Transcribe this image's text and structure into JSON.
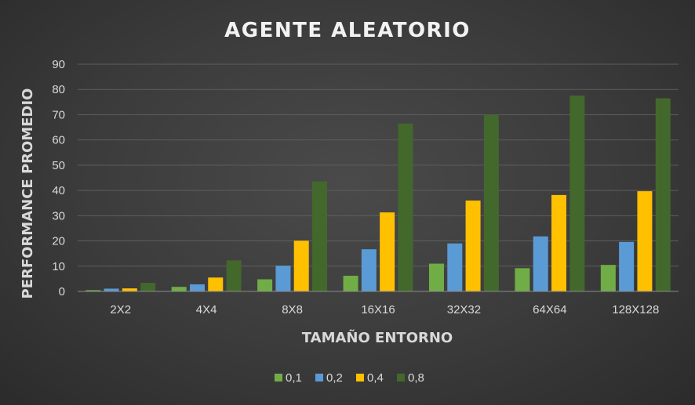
{
  "chart_data": {
    "type": "bar",
    "title": "AGENTE ALEATORIO",
    "xlabel": "TAMAÑO ENTORNO",
    "ylabel": "PERFORMANCE PROMEDIO",
    "categories": [
      "2X2",
      "4X4",
      "8X8",
      "16X16",
      "32X32",
      "64X64",
      "128X128"
    ],
    "series": [
      {
        "name": "0,1",
        "color": "#70ad47",
        "values": [
          0.5,
          1.8,
          4.8,
          6.2,
          11.0,
          9.2,
          10.5
        ]
      },
      {
        "name": "0,2",
        "color": "#5b9bd5",
        "values": [
          1.1,
          2.8,
          10.2,
          16.7,
          19.0,
          21.8,
          19.6
        ]
      },
      {
        "name": "0,4",
        "color": "#ffc000",
        "values": [
          1.2,
          5.5,
          20.1,
          31.3,
          36.0,
          38.2,
          39.7
        ]
      },
      {
        "name": "0,8",
        "color": "#43682b",
        "values": [
          3.4,
          12.3,
          43.6,
          66.5,
          70.0,
          77.6,
          76.5
        ]
      }
    ],
    "ylim": [
      0,
      90
    ],
    "yticks": [
      0,
      10,
      20,
      30,
      40,
      50,
      60,
      70,
      80,
      90
    ],
    "grid": true,
    "legend_position": "bottom"
  }
}
